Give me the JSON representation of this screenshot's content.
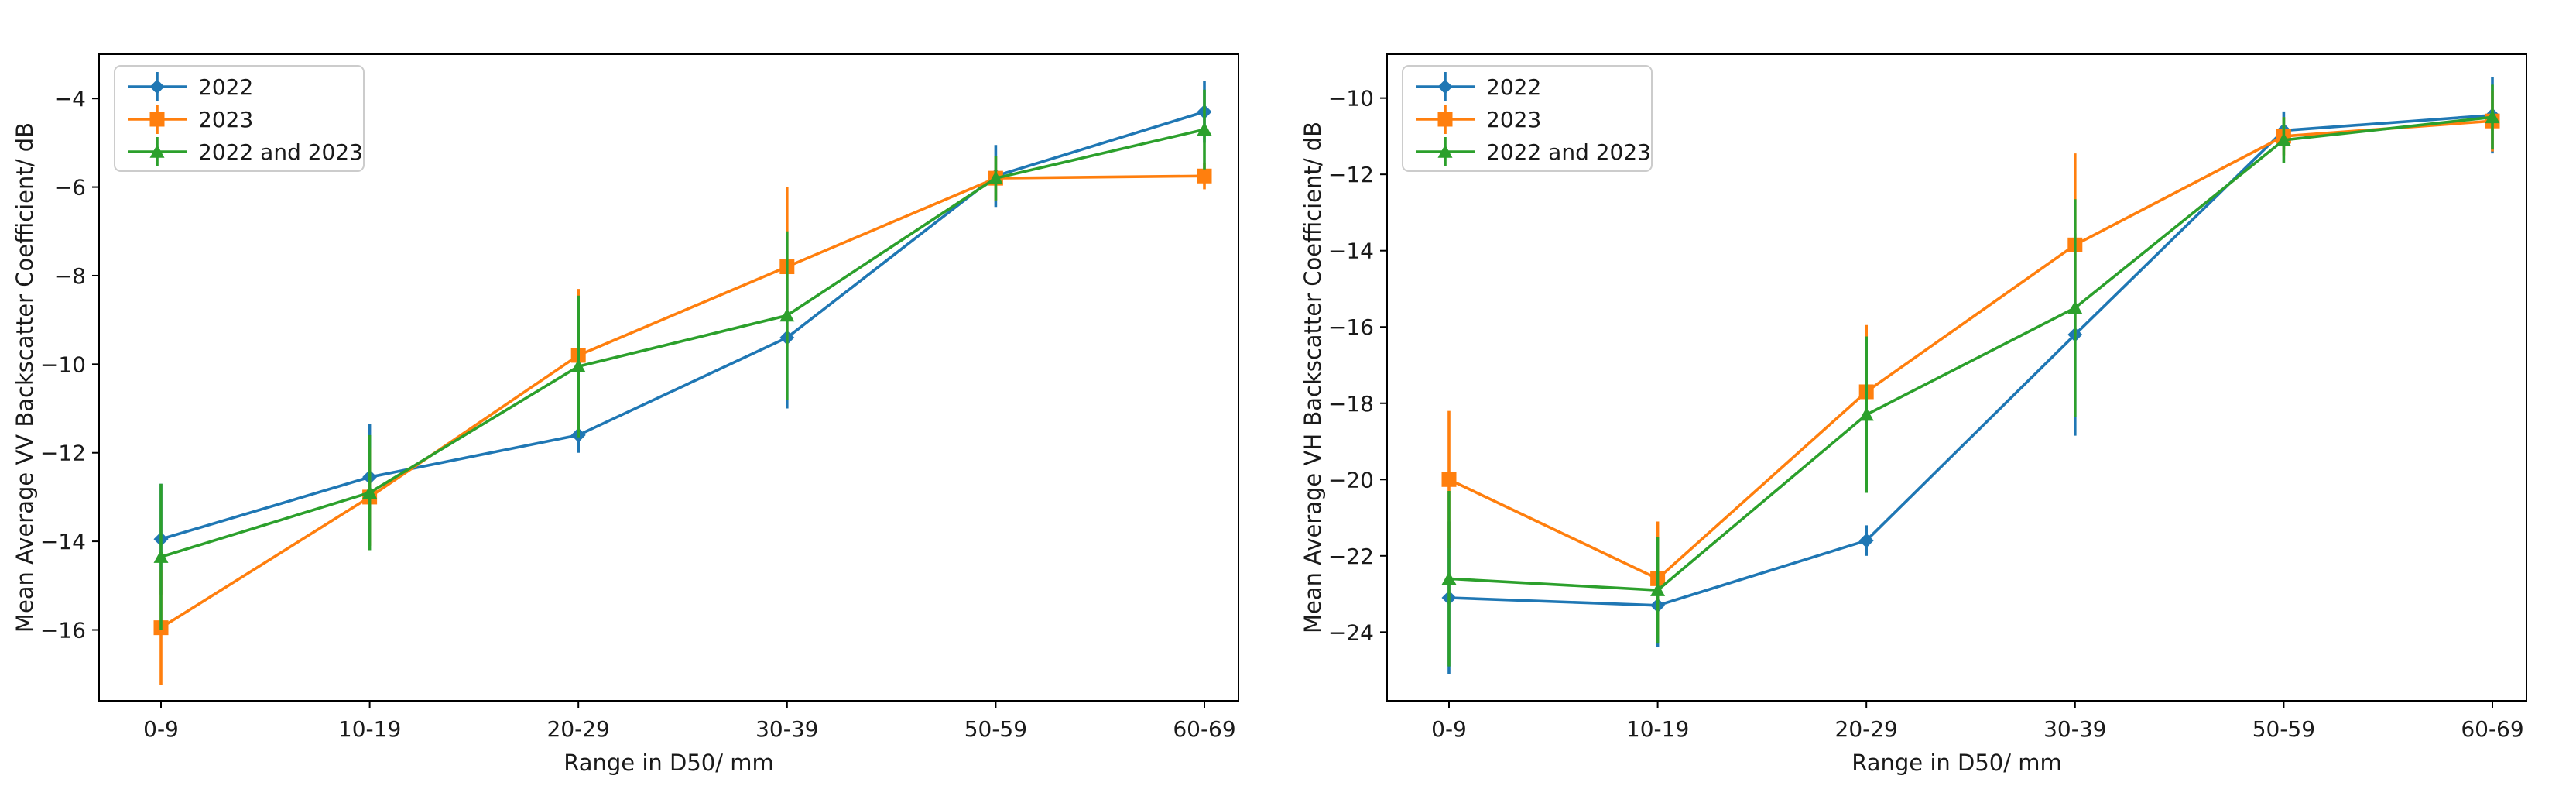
{
  "figure": {
    "background_color": "#ffffff",
    "n_subplots": 2
  },
  "legend": {
    "position": "upper left",
    "entries": [
      "2022",
      "2023",
      "2022 and 2023"
    ],
    "colors": [
      "#1f77b4",
      "#ff7f0e",
      "#2ca02c"
    ],
    "markers": [
      "diamond",
      "square",
      "triangle-up"
    ]
  },
  "chart_data": [
    {
      "type": "line",
      "subplot": "left",
      "xlabel": "Range in D50/ mm",
      "ylabel": "Mean Average VV Backscatter Coefficient/ dB",
      "categories": [
        "0-9",
        "10-19",
        "20-29",
        "30-39",
        "50-59",
        "60-69"
      ],
      "ylim": [
        -17.6,
        -3.0
      ],
      "yticks": [
        -4,
        -6,
        -8,
        -10,
        -12,
        -14,
        -16
      ],
      "ytick_labels": [
        "−4",
        "−6",
        "−8",
        "−10",
        "−12",
        "−14",
        "−16"
      ],
      "grid": false,
      "legend_position": "upper left",
      "error_bars": true,
      "series": [
        {
          "name": "2022",
          "color": "#1f77b4",
          "marker": "diamond",
          "values": [
            -13.95,
            -12.55,
            -11.6,
            -9.4,
            -5.75,
            -4.3
          ],
          "yerr": [
            1.25,
            1.2,
            0.4,
            1.6,
            0.7,
            0.7
          ]
        },
        {
          "name": "2023",
          "color": "#ff7f0e",
          "marker": "square",
          "values": [
            -15.95,
            -13.0,
            -9.8,
            -7.8,
            -5.8,
            -5.75
          ],
          "yerr": [
            1.3,
            1.1,
            1.5,
            1.8,
            0.5,
            0.3
          ]
        },
        {
          "name": "2022 and 2023",
          "color": "#2ca02c",
          "marker": "triangle-up",
          "values": [
            -14.35,
            -12.9,
            -10.05,
            -8.9,
            -5.8,
            -4.7
          ],
          "yerr": [
            1.65,
            1.3,
            1.6,
            1.9,
            0.5,
            0.9
          ]
        }
      ]
    },
    {
      "type": "line",
      "subplot": "right",
      "xlabel": "Range in D50/ mm",
      "ylabel": "Mean Average VH Backscatter Coefficient/ dB",
      "categories": [
        "0-9",
        "10-19",
        "20-29",
        "30-39",
        "50-59",
        "60-69"
      ],
      "ylim": [
        -25.8,
        -8.85
      ],
      "yticks": [
        -10,
        -12,
        -14,
        -16,
        -18,
        -20,
        -22,
        -24
      ],
      "ytick_labels": [
        "−10",
        "−12",
        "−14",
        "−16",
        "−18",
        "−20",
        "−22",
        "−24"
      ],
      "grid": false,
      "legend_position": "upper left",
      "error_bars": true,
      "series": [
        {
          "name": "2022",
          "color": "#1f77b4",
          "marker": "diamond",
          "values": [
            -23.1,
            -23.3,
            -21.6,
            -16.2,
            -10.85,
            -10.45
          ],
          "yerr": [
            2.0,
            1.1,
            0.4,
            2.65,
            0.5,
            1.0
          ]
        },
        {
          "name": "2023",
          "color": "#ff7f0e",
          "marker": "square",
          "values": [
            -20.0,
            -22.6,
            -17.7,
            -13.85,
            -11.0,
            -10.6
          ],
          "yerr": [
            1.8,
            1.5,
            1.75,
            2.4,
            0.5,
            0.8
          ]
        },
        {
          "name": "2022 and 2023",
          "color": "#2ca02c",
          "marker": "triangle-up",
          "values": [
            -22.6,
            -22.9,
            -18.3,
            -15.5,
            -11.1,
            -10.5
          ],
          "yerr": [
            2.3,
            1.4,
            2.05,
            2.85,
            0.6,
            0.85
          ]
        }
      ]
    }
  ]
}
